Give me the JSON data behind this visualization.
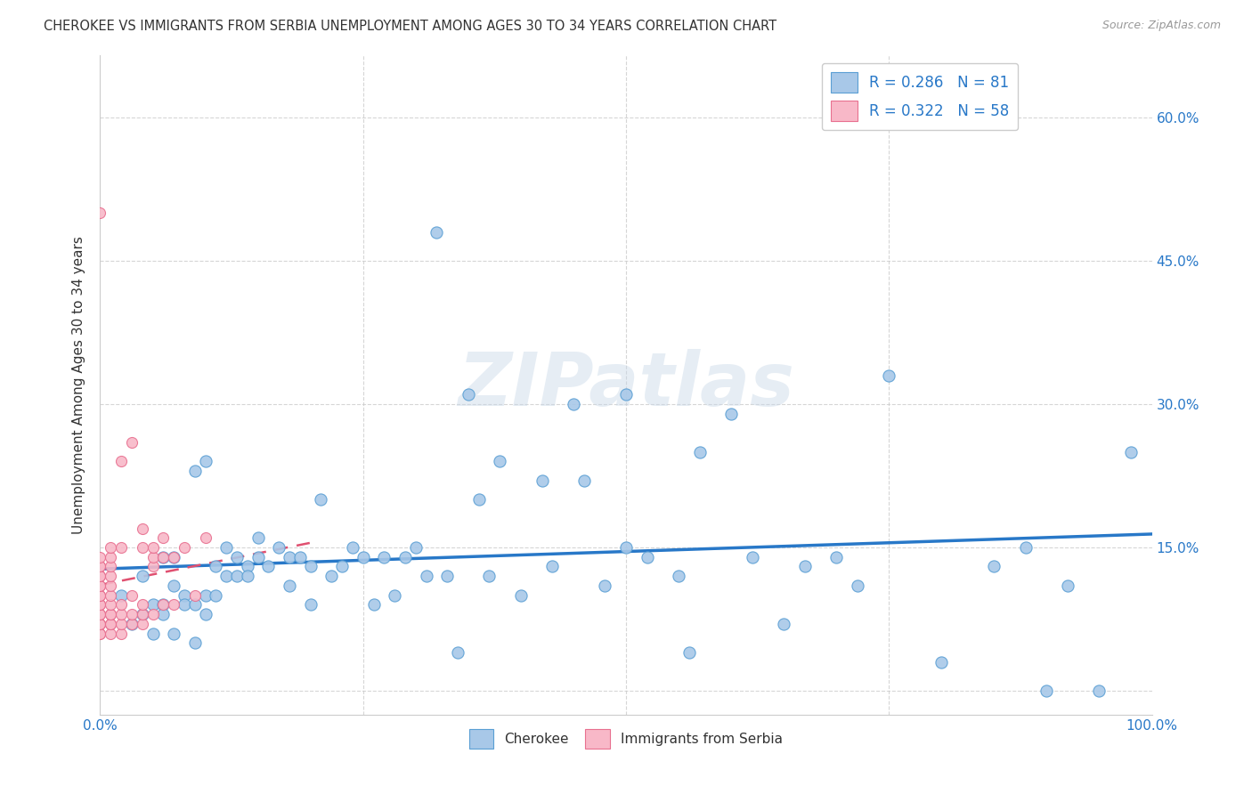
{
  "title": "CHEROKEE VS IMMIGRANTS FROM SERBIA UNEMPLOYMENT AMONG AGES 30 TO 34 YEARS CORRELATION CHART",
  "source": "Source: ZipAtlas.com",
  "ylabel_label": "Unemployment Among Ages 30 to 34 years",
  "ylabel_ticks": [
    0.0,
    0.15,
    0.3,
    0.45,
    0.6
  ],
  "ylabel_tick_labels": [
    "",
    "15.0%",
    "30.0%",
    "45.0%",
    "60.0%"
  ],
  "xlim": [
    0.0,
    1.0
  ],
  "ylim": [
    -0.025,
    0.665
  ],
  "cherokee_R": 0.286,
  "cherokee_N": 81,
  "serbia_R": 0.322,
  "serbia_N": 58,
  "cherokee_color": "#a8c8e8",
  "cherokee_edge_color": "#5a9fd4",
  "cherokee_line_color": "#2878c8",
  "serbia_color": "#f8b8c8",
  "serbia_edge_color": "#e87090",
  "serbia_line_color": "#e05070",
  "grid_color": "#cccccc",
  "background_color": "#ffffff",
  "watermark_text": "ZIPatlas",
  "cherokee_x": [
    0.02,
    0.03,
    0.04,
    0.04,
    0.05,
    0.05,
    0.06,
    0.06,
    0.06,
    0.07,
    0.07,
    0.07,
    0.08,
    0.08,
    0.09,
    0.09,
    0.09,
    0.1,
    0.1,
    0.1,
    0.11,
    0.11,
    0.12,
    0.12,
    0.13,
    0.13,
    0.14,
    0.14,
    0.15,
    0.15,
    0.16,
    0.17,
    0.18,
    0.18,
    0.19,
    0.2,
    0.2,
    0.21,
    0.22,
    0.23,
    0.24,
    0.25,
    0.26,
    0.27,
    0.28,
    0.29,
    0.3,
    0.31,
    0.32,
    0.33,
    0.34,
    0.35,
    0.36,
    0.37,
    0.38,
    0.4,
    0.42,
    0.43,
    0.45,
    0.46,
    0.48,
    0.5,
    0.5,
    0.52,
    0.55,
    0.56,
    0.57,
    0.6,
    0.62,
    0.65,
    0.67,
    0.7,
    0.72,
    0.75,
    0.8,
    0.85,
    0.88,
    0.9,
    0.92,
    0.95,
    0.98
  ],
  "cherokee_y": [
    0.1,
    0.07,
    0.12,
    0.08,
    0.09,
    0.06,
    0.14,
    0.09,
    0.08,
    0.14,
    0.11,
    0.06,
    0.1,
    0.09,
    0.23,
    0.09,
    0.05,
    0.24,
    0.1,
    0.08,
    0.13,
    0.1,
    0.15,
    0.12,
    0.14,
    0.12,
    0.13,
    0.12,
    0.16,
    0.14,
    0.13,
    0.15,
    0.14,
    0.11,
    0.14,
    0.13,
    0.09,
    0.2,
    0.12,
    0.13,
    0.15,
    0.14,
    0.09,
    0.14,
    0.1,
    0.14,
    0.15,
    0.12,
    0.48,
    0.12,
    0.04,
    0.31,
    0.2,
    0.12,
    0.24,
    0.1,
    0.22,
    0.13,
    0.3,
    0.22,
    0.11,
    0.15,
    0.31,
    0.14,
    0.12,
    0.04,
    0.25,
    0.29,
    0.14,
    0.07,
    0.13,
    0.14,
    0.11,
    0.33,
    0.03,
    0.13,
    0.15,
    0.0,
    0.11,
    0.0,
    0.25
  ],
  "serbia_x": [
    0.0,
    0.0,
    0.0,
    0.0,
    0.0,
    0.0,
    0.0,
    0.0,
    0.0,
    0.0,
    0.0,
    0.0,
    0.0,
    0.0,
    0.0,
    0.0,
    0.0,
    0.0,
    0.0,
    0.01,
    0.01,
    0.01,
    0.01,
    0.01,
    0.01,
    0.01,
    0.01,
    0.01,
    0.01,
    0.01,
    0.01,
    0.02,
    0.02,
    0.02,
    0.02,
    0.02,
    0.02,
    0.03,
    0.03,
    0.03,
    0.03,
    0.04,
    0.04,
    0.04,
    0.04,
    0.04,
    0.05,
    0.05,
    0.05,
    0.05,
    0.06,
    0.06,
    0.06,
    0.07,
    0.07,
    0.08,
    0.09,
    0.1
  ],
  "serbia_y": [
    0.06,
    0.06,
    0.07,
    0.07,
    0.07,
    0.08,
    0.08,
    0.09,
    0.09,
    0.1,
    0.1,
    0.11,
    0.11,
    0.12,
    0.12,
    0.13,
    0.13,
    0.14,
    0.5,
    0.06,
    0.07,
    0.07,
    0.08,
    0.08,
    0.09,
    0.1,
    0.11,
    0.12,
    0.13,
    0.14,
    0.15,
    0.06,
    0.07,
    0.08,
    0.09,
    0.15,
    0.24,
    0.07,
    0.08,
    0.1,
    0.26,
    0.07,
    0.08,
    0.09,
    0.15,
    0.17,
    0.08,
    0.13,
    0.14,
    0.15,
    0.09,
    0.14,
    0.16,
    0.09,
    0.14,
    0.15,
    0.1,
    0.16
  ]
}
